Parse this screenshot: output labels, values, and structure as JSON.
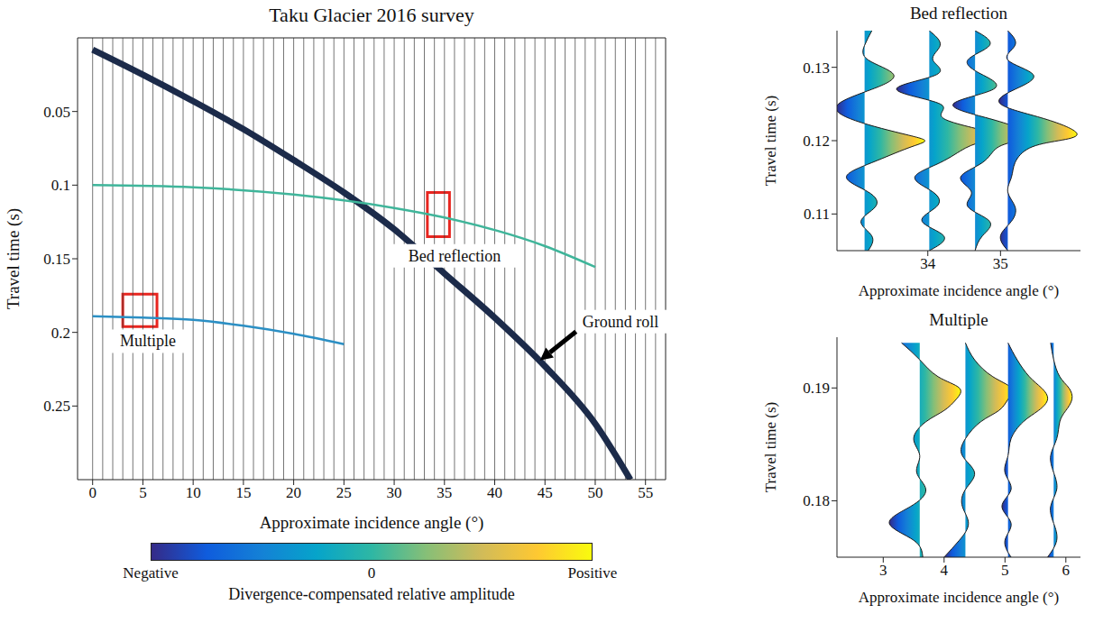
{
  "chart_data": [
    {
      "type": "line",
      "title": "Taku Glacier 2016 survey",
      "x_label": "Approximate incidence angle (°)",
      "y_label": "Travel time (s)",
      "xlim": [
        -1.5,
        57
      ],
      "xticks": [
        0,
        5,
        10,
        15,
        20,
        25,
        30,
        35,
        40,
        45,
        50,
        55
      ],
      "ylim": [
        0,
        0.3
      ],
      "yticks": [
        0.05,
        0.1,
        0.15,
        0.2,
        0.25
      ],
      "trace_positions": [
        0,
        1,
        2,
        3,
        4,
        5,
        6,
        7,
        8,
        9,
        10,
        11,
        12,
        13,
        14,
        15,
        16,
        17,
        18,
        19,
        20,
        21,
        22,
        23,
        24,
        25,
        26,
        27,
        28,
        29,
        30,
        31,
        32,
        33,
        34,
        35,
        36,
        37,
        38,
        39,
        40,
        41,
        42,
        43,
        44,
        45,
        46,
        47,
        48,
        49,
        50,
        51,
        52,
        53,
        54,
        55,
        56
      ],
      "series": [
        {
          "color": "#1c2b4a",
          "line_style": "thick",
          "x": [
            0,
            5,
            10,
            15,
            20,
            25,
            30,
            35,
            40,
            45,
            50,
            53.5
          ],
          "values": [
            0.008,
            0.025,
            0.043,
            0.062,
            0.083,
            0.105,
            0.13,
            0.16,
            0.19,
            0.223,
            0.262,
            0.3
          ]
        },
        {
          "color": "#3fb59a",
          "line_style": "solid",
          "x": [
            0,
            10,
            20,
            30,
            35,
            40,
            45,
            50
          ],
          "values": [
            0.1,
            0.1015,
            0.1064,
            0.1155,
            0.122,
            0.1305,
            0.1414,
            0.1556
          ]
        },
        {
          "color": "#2b8fc4",
          "line_style": "solid",
          "x": [
            0,
            5,
            10,
            15,
            20,
            25
          ],
          "values": [
            0.189,
            0.19,
            0.1915,
            0.1955,
            0.201,
            0.208
          ]
        }
      ],
      "boxes": [
        {
          "xlim": [
            33.3,
            35.5
          ],
          "ylim": [
            0.105,
            0.135
          ],
          "color": "#e8251f"
        },
        {
          "xlim": [
            3,
            6.4
          ],
          "ylim": [
            0.174,
            0.196
          ],
          "color": "#e8251f"
        }
      ],
      "annotations": [
        {
          "text": "Bed reflection",
          "x": 36,
          "y": 0.148
        },
        {
          "text": "Multiple",
          "x": 5.5,
          "y": 0.206
        },
        {
          "text": "Ground roll",
          "x": 44.5,
          "y": 0.219,
          "arrow": true
        }
      ],
      "colorbar": {
        "label": "Divergence-compensated relative amplitude",
        "range": [
          -1,
          1
        ],
        "ticks": [
          {
            "value": -1,
            "label": "Negative"
          },
          {
            "value": 0,
            "label": "0"
          },
          {
            "value": 1,
            "label": "Positive"
          }
        ],
        "colors": [
          "#352a87",
          "#0f5cdd",
          "#1481d6",
          "#06a4ca",
          "#2eb7a4",
          "#87bf77",
          "#d1bb59",
          "#fec832",
          "#f9fb0e"
        ]
      }
    },
    {
      "type": "wiggle",
      "title": "Bed reflection",
      "x_label": "Approximate incidence angle (°)",
      "y_label": "Travel time (s)",
      "xlim": [
        32.75,
        36.1
      ],
      "xticks": [
        34,
        35
      ],
      "ylim": [
        0.105,
        0.135
      ],
      "yticks": [
        0.11,
        0.12,
        0.13
      ],
      "time": [
        0.105,
        0.107,
        0.109,
        0.111,
        0.113,
        0.115,
        0.117,
        0.119,
        0.12,
        0.121,
        0.123,
        0.125,
        0.127,
        0.129,
        0.131,
        0.133,
        0.135
      ],
      "traces": [
        {
          "baseline": 33.13,
          "x": [
            33.18,
            33.23,
            33.08,
            33.28,
            33.18,
            32.88,
            33.23,
            33.73,
            33.96,
            33.63,
            32.93,
            32.77,
            33.23,
            33.53,
            33.18,
            33.13,
            33.23
          ]
        },
        {
          "baseline": 34.02,
          "x": [
            34.02,
            34.22,
            33.92,
            34.12,
            34.07,
            33.82,
            34.17,
            34.52,
            34.82,
            34.91,
            34.22,
            34.17,
            33.57,
            34.12,
            34.07,
            34.17,
            34.02
          ]
        },
        {
          "baseline": 34.65,
          "x": [
            34.65,
            34.75,
            34.85,
            34.55,
            34.6,
            34.45,
            34.75,
            34.95,
            35.25,
            35.4,
            34.85,
            34.35,
            34.9,
            34.75,
            34.55,
            34.85,
            34.65
          ]
        },
        {
          "baseline": 35.1,
          "x": [
            35.1,
            35.0,
            35.15,
            35.2,
            35.1,
            35.15,
            35.2,
            35.4,
            35.8,
            36.05,
            35.6,
            35.0,
            35.2,
            35.45,
            35.1,
            35.2,
            35.1
          ]
        }
      ]
    },
    {
      "type": "wiggle",
      "title": "Multiple",
      "x_label": "Approximate incidence angle (°)",
      "y_label": "Travel time (s)",
      "xlim": [
        2.24,
        6.24
      ],
      "xticks": [
        3,
        4,
        5,
        6
      ],
      "ylim": [
        0.175,
        0.1945
      ],
      "yticks": [
        0.18,
        0.19
      ],
      "time": [
        0.175,
        0.1765,
        0.178,
        0.1795,
        0.181,
        0.1825,
        0.184,
        0.1855,
        0.187,
        0.188,
        0.189,
        0.19,
        0.191,
        0.1925,
        0.194
      ],
      "traces": [
        {
          "baseline": 3.6,
          "x": [
            3.65,
            3.5,
            3.1,
            3.45,
            3.7,
            3.55,
            3.6,
            3.5,
            3.7,
            4.0,
            4.2,
            4.25,
            3.9,
            3.6,
            3.3
          ]
        },
        {
          "baseline": 4.35,
          "x": [
            4.0,
            4.25,
            4.4,
            4.3,
            4.35,
            4.5,
            4.3,
            4.35,
            4.6,
            4.9,
            5.05,
            5.1,
            4.8,
            4.5,
            4.35
          ]
        },
        {
          "baseline": 5.05,
          "x": [
            5.1,
            5.0,
            5.1,
            4.95,
            5.1,
            5.0,
            5.05,
            5.1,
            5.3,
            5.55,
            5.7,
            5.6,
            5.4,
            5.2,
            5.05
          ]
        },
        {
          "baseline": 5.8,
          "x": [
            5.7,
            5.85,
            5.8,
            5.75,
            5.85,
            5.8,
            5.75,
            5.85,
            5.9,
            6.0,
            6.1,
            6.05,
            5.9,
            5.8,
            5.75
          ]
        }
      ]
    }
  ]
}
